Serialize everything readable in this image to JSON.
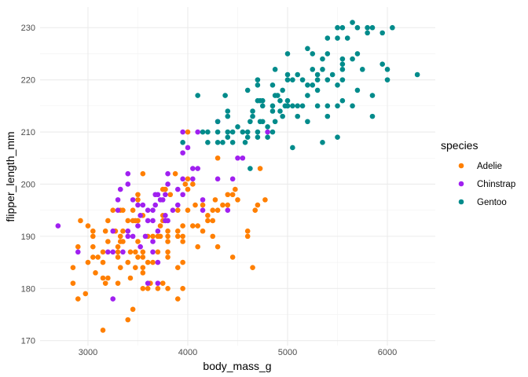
{
  "chart_data": {
    "type": "scatter",
    "xlabel": "body_mass_g",
    "ylabel": "flipper_length_mm",
    "xlim": [
      2520,
      6480
    ],
    "ylim": [
      169.05,
      233.95
    ],
    "x_ticks": [
      3000,
      4000,
      5000,
      6000
    ],
    "y_ticks": [
      170,
      180,
      190,
      200,
      210,
      220,
      230
    ],
    "grid": true,
    "legend": {
      "title": "species",
      "placement": "right"
    },
    "series": [
      {
        "name": "Adelie",
        "color": "#FF7F00",
        "points": [
          [
            4000,
            210
          ],
          [
            4300,
            205
          ],
          [
            4725,
            203
          ],
          [
            3550,
            202
          ],
          [
            3875,
            202
          ],
          [
            4000,
            201
          ],
          [
            3975,
            200
          ],
          [
            4050,
            200
          ],
          [
            3750,
            199
          ],
          [
            3775,
            199
          ],
          [
            4000,
            199
          ],
          [
            4475,
            199
          ],
          [
            3500,
            198
          ],
          [
            3825,
            198
          ],
          [
            4400,
            198
          ],
          [
            4450,
            198
          ],
          [
            3500,
            197
          ],
          [
            4275,
            197
          ],
          [
            4500,
            197
          ],
          [
            4775,
            197
          ],
          [
            4075,
            196
          ],
          [
            4150,
            196
          ],
          [
            4350,
            196
          ],
          [
            4400,
            196
          ],
          [
            4700,
            196
          ],
          [
            3250,
            195
          ],
          [
            3325,
            195
          ],
          [
            3350,
            195
          ],
          [
            3450,
            195
          ],
          [
            3900,
            195
          ],
          [
            4000,
            195
          ],
          [
            4250,
            195
          ],
          [
            4300,
            195
          ],
          [
            4675,
            195
          ],
          [
            3550,
            194
          ],
          [
            3750,
            194
          ],
          [
            4200,
            194
          ],
          [
            2925,
            193
          ],
          [
            3200,
            193
          ],
          [
            3400,
            193
          ],
          [
            3450,
            193
          ],
          [
            3475,
            193
          ],
          [
            3500,
            193
          ],
          [
            3750,
            193
          ],
          [
            4200,
            193
          ],
          [
            4250,
            193
          ],
          [
            3000,
            192
          ],
          [
            3725,
            192
          ],
          [
            3950,
            192
          ],
          [
            4050,
            192
          ],
          [
            4100,
            192
          ],
          [
            3050,
            191
          ],
          [
            3175,
            191
          ],
          [
            3275,
            191
          ],
          [
            3350,
            191
          ],
          [
            3800,
            191
          ],
          [
            3900,
            191
          ],
          [
            4150,
            191
          ],
          [
            4600,
            191
          ],
          [
            3050,
            190
          ],
          [
            3325,
            190
          ],
          [
            3600,
            190
          ],
          [
            3650,
            190
          ],
          [
            3700,
            190
          ],
          [
            3725,
            190
          ],
          [
            3800,
            190
          ],
          [
            3900,
            190
          ],
          [
            3950,
            190
          ],
          [
            4250,
            190
          ],
          [
            4600,
            190
          ],
          [
            3200,
            189
          ],
          [
            3325,
            189
          ],
          [
            3350,
            189
          ],
          [
            3500,
            189
          ],
          [
            3800,
            189
          ],
          [
            3950,
            189
          ],
          [
            2900,
            188
          ],
          [
            3050,
            188
          ],
          [
            3300,
            188
          ],
          [
            4100,
            188
          ],
          [
            4300,
            188
          ],
          [
            3150,
            187
          ],
          [
            3300,
            187
          ],
          [
            3425,
            187
          ],
          [
            3475,
            187
          ],
          [
            3550,
            187
          ],
          [
            3700,
            187
          ],
          [
            3800,
            187
          ],
          [
            3050,
            186
          ],
          [
            3100,
            186
          ],
          [
            3300,
            186
          ],
          [
            3500,
            186
          ],
          [
            3550,
            186
          ],
          [
            3800,
            186
          ],
          [
            4450,
            186
          ],
          [
            3000,
            185
          ],
          [
            3150,
            185
          ],
          [
            3400,
            185
          ],
          [
            3600,
            185
          ],
          [
            3650,
            185
          ],
          [
            3950,
            185
          ],
          [
            2850,
            184
          ],
          [
            3325,
            184
          ],
          [
            3475,
            184
          ],
          [
            3550,
            184
          ],
          [
            3900,
            184
          ],
          [
            4650,
            184
          ],
          [
            3075,
            183
          ],
          [
            3550,
            183
          ],
          [
            3150,
            182
          ],
          [
            3200,
            182
          ],
          [
            3425,
            182
          ],
          [
            2850,
            181
          ],
          [
            3175,
            181
          ],
          [
            3300,
            181
          ],
          [
            3625,
            181
          ],
          [
            3750,
            181
          ],
          [
            3550,
            180
          ],
          [
            3600,
            180
          ],
          [
            3700,
            180
          ],
          [
            3800,
            180
          ],
          [
            3950,
            180
          ],
          [
            2975,
            179
          ],
          [
            2900,
            178
          ],
          [
            3900,
            178
          ],
          [
            3450,
            176
          ],
          [
            3400,
            174
          ],
          [
            3150,
            172
          ]
        ]
      },
      {
        "name": "Chinstrap",
        "color": "#A020F0",
        "points": [
          [
            3950,
            210
          ],
          [
            4100,
            210
          ],
          [
            4800,
            210
          ],
          [
            4300,
            212
          ],
          [
            4000,
            207
          ],
          [
            3950,
            206
          ],
          [
            4500,
            205
          ],
          [
            4550,
            205
          ],
          [
            4050,
            203
          ],
          [
            4100,
            203
          ],
          [
            3400,
            202
          ],
          [
            3800,
            202
          ],
          [
            3950,
            201
          ],
          [
            4050,
            201
          ],
          [
            4300,
            201
          ],
          [
            4450,
            201
          ],
          [
            3400,
            200
          ],
          [
            3800,
            200
          ],
          [
            3325,
            199
          ],
          [
            3900,
            199
          ],
          [
            3675,
            198
          ],
          [
            3700,
            198
          ],
          [
            3775,
            198
          ],
          [
            3950,
            198
          ],
          [
            3300,
            197
          ],
          [
            3450,
            197
          ],
          [
            3725,
            197
          ],
          [
            3750,
            197
          ],
          [
            4150,
            197
          ],
          [
            3500,
            196
          ],
          [
            3550,
            196
          ],
          [
            3675,
            196
          ],
          [
            3900,
            196
          ],
          [
            3300,
            195
          ],
          [
            3600,
            195
          ],
          [
            3650,
            195
          ],
          [
            3850,
            195
          ],
          [
            4150,
            195
          ],
          [
            4400,
            195
          ],
          [
            3525,
            194
          ],
          [
            3775,
            194
          ],
          [
            3600,
            193
          ],
          [
            3650,
            193
          ],
          [
            3775,
            193
          ],
          [
            3800,
            193
          ],
          [
            2700,
            192
          ],
          [
            3500,
            192
          ],
          [
            3250,
            191
          ],
          [
            3400,
            191
          ],
          [
            3700,
            191
          ],
          [
            3400,
            190
          ],
          [
            3450,
            190
          ],
          [
            3575,
            190
          ],
          [
            3650,
            189
          ],
          [
            3525,
            188
          ],
          [
            2900,
            187
          ],
          [
            3200,
            187
          ],
          [
            3250,
            187
          ],
          [
            3350,
            187
          ],
          [
            3650,
            187
          ],
          [
            3700,
            185
          ],
          [
            3600,
            181
          ],
          [
            3700,
            181
          ],
          [
            3250,
            178
          ]
        ]
      },
      {
        "name": "Gentoo",
        "color": "#008B8B",
        "points": [
          [
            5650,
            231
          ],
          [
            5500,
            230
          ],
          [
            5550,
            230
          ],
          [
            5700,
            230
          ],
          [
            5800,
            230
          ],
          [
            5850,
            230
          ],
          [
            6050,
            230
          ],
          [
            5800,
            229
          ],
          [
            5950,
            229
          ],
          [
            5400,
            228
          ],
          [
            5500,
            228
          ],
          [
            5600,
            228
          ],
          [
            5200,
            226
          ],
          [
            5000,
            225
          ],
          [
            5250,
            225
          ],
          [
            5400,
            225
          ],
          [
            5700,
            225
          ],
          [
            5350,
            224
          ],
          [
            5550,
            224
          ],
          [
            5650,
            224
          ],
          [
            5550,
            223
          ],
          [
            5950,
            223
          ],
          [
            4875,
            222
          ],
          [
            5250,
            222
          ],
          [
            5350,
            222
          ],
          [
            5550,
            222
          ],
          [
            5750,
            222
          ],
          [
            6000,
            222
          ],
          [
            5000,
            221
          ],
          [
            5100,
            221
          ],
          [
            5300,
            221
          ],
          [
            5450,
            221
          ],
          [
            6300,
            221
          ],
          [
            4700,
            220
          ],
          [
            5000,
            220
          ],
          [
            5050,
            220
          ],
          [
            5150,
            220
          ],
          [
            5300,
            220
          ],
          [
            5400,
            220
          ],
          [
            5550,
            220
          ],
          [
            6000,
            220
          ],
          [
            4700,
            219
          ],
          [
            4850,
            219
          ],
          [
            5200,
            219
          ],
          [
            5250,
            219
          ],
          [
            5500,
            219
          ],
          [
            4600,
            218
          ],
          [
            4950,
            218
          ],
          [
            5300,
            218
          ],
          [
            5700,
            218
          ],
          [
            4100,
            217
          ],
          [
            4375,
            217
          ],
          [
            4875,
            217
          ],
          [
            4900,
            217
          ],
          [
            5200,
            217
          ],
          [
            5850,
            217
          ],
          [
            4700,
            216
          ],
          [
            4725,
            216
          ],
          [
            4750,
            216
          ],
          [
            4925,
            216
          ],
          [
            5000,
            216
          ],
          [
            5550,
            216
          ],
          [
            4750,
            215
          ],
          [
            4850,
            215
          ],
          [
            4975,
            215
          ],
          [
            5000,
            215
          ],
          [
            5000,
            215
          ],
          [
            5050,
            215
          ],
          [
            5100,
            215
          ],
          [
            5150,
            215
          ],
          [
            5300,
            215
          ],
          [
            5400,
            215
          ],
          [
            5500,
            215
          ],
          [
            5650,
            215
          ],
          [
            4400,
            214
          ],
          [
            4650,
            214
          ],
          [
            4850,
            214
          ],
          [
            4925,
            214
          ],
          [
            4400,
            213
          ],
          [
            4650,
            213
          ],
          [
            4950,
            213
          ],
          [
            5100,
            213
          ],
          [
            5400,
            213
          ],
          [
            5850,
            213
          ],
          [
            4300,
            212
          ],
          [
            4625,
            212
          ],
          [
            4725,
            212
          ],
          [
            4750,
            212
          ],
          [
            4875,
            212
          ],
          [
            5200,
            212
          ],
          [
            4500,
            211
          ],
          [
            4800,
            211
          ],
          [
            4150,
            210
          ],
          [
            4200,
            210
          ],
          [
            4300,
            210
          ],
          [
            4400,
            210
          ],
          [
            4450,
            210
          ],
          [
            4550,
            210
          ],
          [
            4600,
            210
          ],
          [
            4700,
            210
          ],
          [
            4850,
            210
          ],
          [
            4400,
            209
          ],
          [
            4600,
            209
          ],
          [
            4700,
            209
          ],
          [
            4800,
            209
          ],
          [
            5500,
            209
          ],
          [
            3950,
            208
          ],
          [
            4200,
            208
          ],
          [
            4300,
            208
          ],
          [
            4350,
            208
          ],
          [
            4450,
            208
          ],
          [
            4575,
            208
          ],
          [
            5350,
            208
          ],
          [
            5050,
            207
          ],
          [
            4625,
            203
          ]
        ]
      }
    ]
  }
}
